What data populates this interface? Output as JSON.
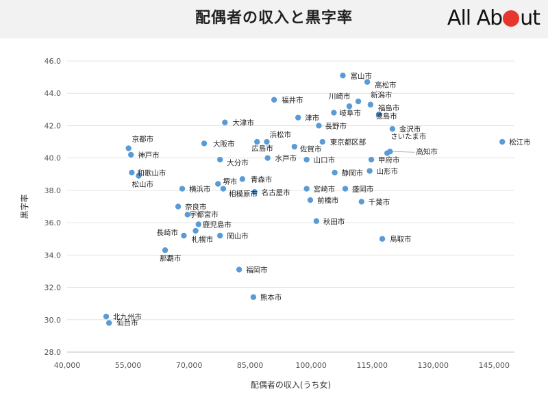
{
  "header": {
    "title": "配偶者の収入と黒字率",
    "logo_left": "All Ab",
    "logo_right": "ut"
  },
  "colors": {
    "point": "#5b9bd5",
    "grid": "#e3e3e3",
    "logo_dot": "#e8352e"
  },
  "chart_data": {
    "type": "scatter",
    "title": "",
    "xlabel": "配偶者の収入(うち女)",
    "ylabel": "黒字率",
    "xlim": [
      40000,
      150000
    ],
    "ylim": [
      28,
      46
    ],
    "xticks": [
      40000,
      55000,
      70000,
      85000,
      100000,
      115000,
      130000,
      145000
    ],
    "xtick_labels": [
      "40,000",
      "55,000",
      "70,000",
      "85,000",
      "100,000",
      "115,000",
      "130,000",
      "145,000"
    ],
    "yticks": [
      28,
      30,
      32,
      34,
      36,
      38,
      40,
      42,
      44,
      46
    ],
    "ytick_labels": [
      "28.0",
      "30.0",
      "32.0",
      "34.0",
      "36.0",
      "38.0",
      "40.0",
      "42.0",
      "44.0",
      "46.0"
    ],
    "grid": "horizontal",
    "points": [
      {
        "label": "松江市",
        "x": 147000,
        "y": 41.0
      },
      {
        "label": "富山市",
        "x": 107800,
        "y": 45.1
      },
      {
        "label": "高松市",
        "x": 113800,
        "y": 44.7
      },
      {
        "label": "川崎市",
        "x": 111600,
        "y": 43.5
      },
      {
        "label": "新潟市",
        "x": 109400,
        "y": 43.2
      },
      {
        "label": "福島市",
        "x": 114600,
        "y": 43.3
      },
      {
        "label": "徳島市",
        "x": 116700,
        "y": 42.7
      },
      {
        "label": "岐阜市",
        "x": 105600,
        "y": 42.8
      },
      {
        "label": "福井市",
        "x": 90900,
        "y": 43.6
      },
      {
        "label": "津市",
        "x": 96800,
        "y": 42.5
      },
      {
        "label": "長野市",
        "x": 101900,
        "y": 42.0
      },
      {
        "label": "金沢市",
        "x": 120000,
        "y": 41.8
      },
      {
        "label": "大津市",
        "x": 78800,
        "y": 42.2
      },
      {
        "label": "浜松市",
        "x": 89100,
        "y": 41.0
      },
      {
        "label": "広島市",
        "x": 86700,
        "y": 41.0
      },
      {
        "label": "大阪市",
        "x": 73700,
        "y": 40.9
      },
      {
        "label": "佐賀市",
        "x": 95900,
        "y": 40.7
      },
      {
        "label": "東京都区部",
        "x": 102800,
        "y": 41.0
      },
      {
        "label": "さいたま市",
        "x": 118700,
        "y": 40.3
      },
      {
        "label": "高知市",
        "x": 119400,
        "y": 40.4
      },
      {
        "label": "甲府市",
        "x": 114800,
        "y": 39.9
      },
      {
        "label": "京都市",
        "x": 55100,
        "y": 40.6
      },
      {
        "label": "神戸市",
        "x": 55700,
        "y": 40.2
      },
      {
        "label": "大分市",
        "x": 77600,
        "y": 39.9
      },
      {
        "label": "水戸市",
        "x": 89300,
        "y": 40.0
      },
      {
        "label": "山口市",
        "x": 98900,
        "y": 39.9
      },
      {
        "label": "和歌山市",
        "x": 55900,
        "y": 39.1
      },
      {
        "label": "松山市",
        "x": 57600,
        "y": 38.9
      },
      {
        "label": "静岡市",
        "x": 105800,
        "y": 39.1
      },
      {
        "label": "山形市",
        "x": 114400,
        "y": 39.2
      },
      {
        "label": "青森市",
        "x": 83100,
        "y": 38.7
      },
      {
        "label": "堺市",
        "x": 77100,
        "y": 38.4
      },
      {
        "label": "横浜市",
        "x": 68300,
        "y": 38.1
      },
      {
        "label": "相模原市",
        "x": 78400,
        "y": 38.1
      },
      {
        "label": "名古屋市",
        "x": 86100,
        "y": 37.9
      },
      {
        "label": "宮崎市",
        "x": 98900,
        "y": 38.1
      },
      {
        "label": "盛岡市",
        "x": 108400,
        "y": 38.1
      },
      {
        "label": "前橋市",
        "x": 99800,
        "y": 37.4
      },
      {
        "label": "千葉市",
        "x": 112400,
        "y": 37.3
      },
      {
        "label": "奈良市",
        "x": 67300,
        "y": 37.0
      },
      {
        "label": "宇都宮市",
        "x": 69600,
        "y": 36.5
      },
      {
        "label": "鹿児島市",
        "x": 72300,
        "y": 35.9
      },
      {
        "label": "長崎市",
        "x": 68700,
        "y": 35.2
      },
      {
        "label": "札幌市",
        "x": 71600,
        "y": 35.5
      },
      {
        "label": "岡山市",
        "x": 77600,
        "y": 35.2
      },
      {
        "label": "秋田市",
        "x": 101300,
        "y": 36.1
      },
      {
        "label": "鳥取市",
        "x": 117500,
        "y": 35.0
      },
      {
        "label": "那覇市",
        "x": 64100,
        "y": 34.3
      },
      {
        "label": "福岡市",
        "x": 82300,
        "y": 33.1
      },
      {
        "label": "熊本市",
        "x": 85800,
        "y": 31.4
      },
      {
        "label": "北九州市",
        "x": 49600,
        "y": 30.2
      },
      {
        "label": "仙台市",
        "x": 50300,
        "y": 29.8
      }
    ]
  }
}
